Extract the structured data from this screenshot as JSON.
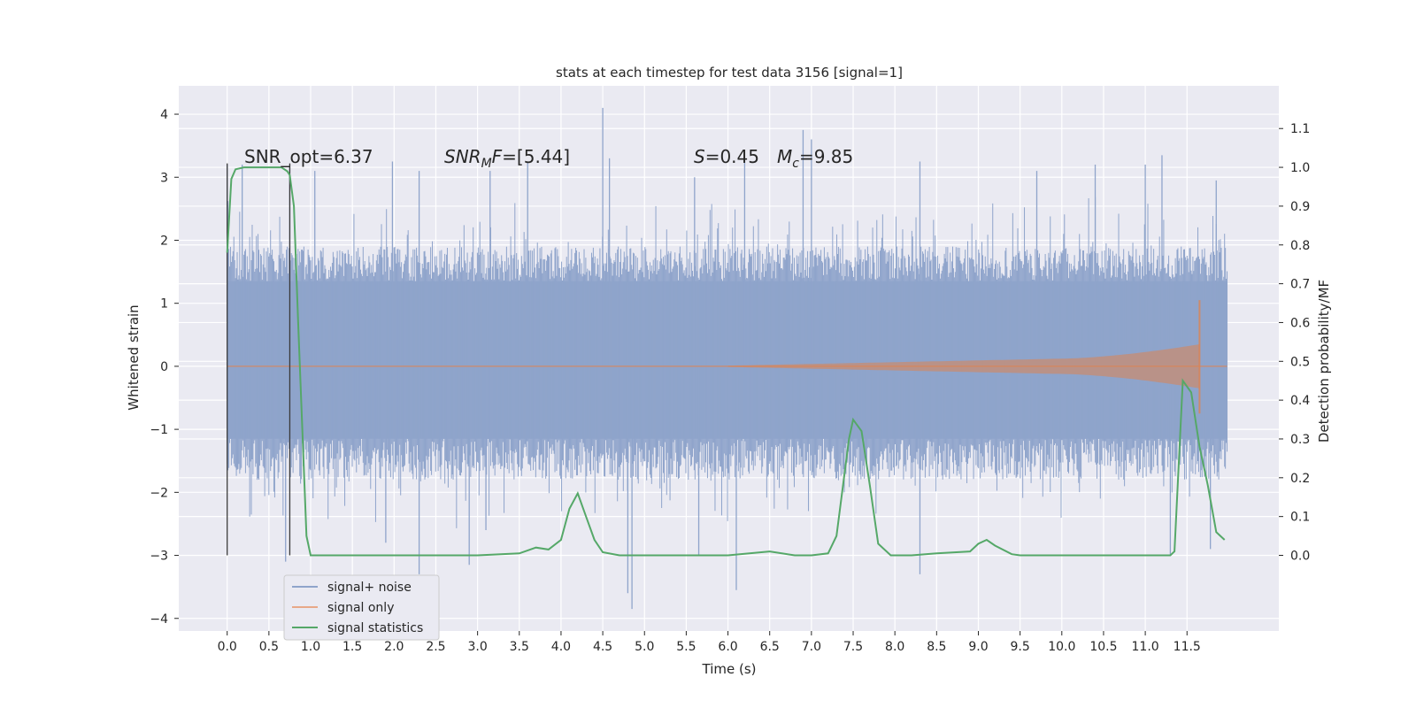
{
  "chart_data": {
    "type": "line",
    "title": "stats at each timestep for test data 3156 [signal=1]",
    "xlabel": "Time (s)",
    "ylabel": "Whitened strain",
    "ylabel_right": "Detection probability/MF",
    "xlim": [
      -0.58,
      12.6
    ],
    "ylim": [
      -4.2,
      4.45
    ],
    "ylim_right": [
      -0.195,
      1.21
    ],
    "x_ticks": [
      0.0,
      0.5,
      1.0,
      1.5,
      2.0,
      2.5,
      3.0,
      3.5,
      4.0,
      4.5,
      5.0,
      5.5,
      6.0,
      6.5,
      7.0,
      7.5,
      8.0,
      8.5,
      9.0,
      9.5,
      10.0,
      10.5,
      11.0,
      11.5
    ],
    "x_tick_labels": [
      "0.0",
      "0.5",
      "1.0",
      "1.5",
      "2.0",
      "2.5",
      "3.0",
      "3.5",
      "4.0",
      "4.5",
      "5.0",
      "5.5",
      "6.0",
      "6.5",
      "7.0",
      "7.5",
      "8.0",
      "8.5",
      "9.0",
      "9.5",
      "10.0",
      "10.5",
      "11.0",
      "11.5"
    ],
    "y_ticks": [
      -4,
      -3,
      -2,
      -1,
      0,
      1,
      2,
      3,
      4
    ],
    "y_tick_labels": [
      "−4",
      "−3",
      "−2",
      "−1",
      "0",
      "1",
      "2",
      "3",
      "4"
    ],
    "y_right_ticks": [
      0.0,
      0.1,
      0.2,
      0.3,
      0.4,
      0.5,
      0.6,
      0.7,
      0.8,
      0.9,
      1.0,
      1.1
    ],
    "y_right_tick_labels": [
      "0.0",
      "0.1",
      "0.2",
      "0.3",
      "0.4",
      "0.5",
      "0.6",
      "0.7",
      "0.8",
      "0.9",
      "1.0",
      "1.1"
    ],
    "grid": true,
    "legend_position": "bottom-left",
    "colors": {
      "background": "#eaeaf2",
      "grid": "#ffffff",
      "noise": "#8fa4cb",
      "signal": "#dd8452",
      "stats": "#55a868",
      "vline": "#3a3a3a"
    },
    "annotations": {
      "snr_opt": "SNR_opt=6.37",
      "snr_mf_sym": "SNR",
      "snr_mf_sub": "M",
      "snr_mf_rest": "F=[5.44]",
      "s_sym": "S",
      "s_val": "=0.45",
      "mc_sym": "M",
      "mc_sub": "c",
      "mc_val": "=9.85"
    },
    "vlines_x": [
      0.0,
      0.75
    ],
    "series": [
      {
        "name": "signal+ noise",
        "style": "noise",
        "t_end": 11.98,
        "band_inner": [
          -1.15,
          1.35
        ],
        "band_dense": [
          -1.8,
          1.9
        ],
        "range_envelope": [
          -3.6,
          4.1
        ],
        "spikes": [
          {
            "x": 0.0,
            "y": 3.2
          },
          {
            "x": 0.18,
            "y": 3.2
          },
          {
            "x": 0.75,
            "y": 3.2
          },
          {
            "x": 1.05,
            "y": 3.1
          },
          {
            "x": 1.98,
            "y": 3.25
          },
          {
            "x": 2.3,
            "y": 3.1
          },
          {
            "x": 3.15,
            "y": 3.1
          },
          {
            "x": 3.6,
            "y": 3.25
          },
          {
            "x": 4.5,
            "y": 4.1
          },
          {
            "x": 4.58,
            "y": 3.3
          },
          {
            "x": 5.6,
            "y": 3.0
          },
          {
            "x": 6.2,
            "y": 3.25
          },
          {
            "x": 6.9,
            "y": 3.75
          },
          {
            "x": 7.0,
            "y": 3.6
          },
          {
            "x": 8.3,
            "y": 3.25
          },
          {
            "x": 11.2,
            "y": 3.35
          },
          {
            "x": 11.85,
            "y": 2.95
          },
          {
            "x": 11.0,
            "y": 3.2
          },
          {
            "x": 10.4,
            "y": 3.2
          },
          {
            "x": 9.7,
            "y": 3.1
          },
          {
            "x": 2.3,
            "y": -3.3
          },
          {
            "x": 4.8,
            "y": -3.6
          },
          {
            "x": 4.85,
            "y": -3.85
          },
          {
            "x": 6.1,
            "y": -3.55
          },
          {
            "x": 8.3,
            "y": -3.3
          },
          {
            "x": 0.7,
            "y": -3.1
          },
          {
            "x": 2.9,
            "y": -3.15
          },
          {
            "x": 1.9,
            "y": -2.8
          },
          {
            "x": 5.65,
            "y": -3.0
          },
          {
            "x": 11.3,
            "y": -3.0
          },
          {
            "x": 11.78,
            "y": -2.9
          },
          {
            "x": 3.1,
            "y": -2.6
          }
        ]
      },
      {
        "name": "signal only",
        "style": "signal",
        "chirp_start": 6.0,
        "chirp_end": 11.65,
        "amp_start": 0.01,
        "amp_mid": 0.12,
        "amp_late": 0.35,
        "peak_top": 1.05,
        "peak_bottom": -0.75
      },
      {
        "name": "signal statistics",
        "style": "stats",
        "axis": "right",
        "x": [
          0.0,
          0.05,
          0.1,
          0.2,
          0.3,
          0.5,
          0.65,
          0.72,
          0.75,
          0.8,
          0.85,
          0.95,
          1.0,
          1.5,
          2.0,
          3.0,
          3.5,
          3.7,
          3.85,
          4.0,
          4.1,
          4.2,
          4.3,
          4.4,
          4.5,
          4.7,
          5.0,
          6.0,
          6.5,
          6.8,
          7.0,
          7.2,
          7.3,
          7.45,
          7.5,
          7.6,
          7.7,
          7.8,
          7.95,
          8.0,
          8.2,
          8.5,
          8.9,
          9.0,
          9.1,
          9.2,
          9.4,
          9.5,
          10.0,
          10.5,
          11.0,
          11.3,
          11.35,
          11.45,
          11.55,
          11.65,
          11.75,
          11.85,
          11.95
        ],
        "y": [
          0.78,
          0.97,
          0.995,
          1.0,
          1.0,
          1.0,
          1.0,
          0.99,
          0.98,
          0.9,
          0.6,
          0.05,
          0.0,
          0.0,
          0.0,
          0.0,
          0.005,
          0.02,
          0.015,
          0.04,
          0.12,
          0.16,
          0.1,
          0.04,
          0.008,
          0.0,
          0.0,
          0.0,
          0.01,
          0.0,
          0.0,
          0.005,
          0.05,
          0.3,
          0.35,
          0.32,
          0.18,
          0.03,
          0.0,
          0.0,
          0.0,
          0.005,
          0.01,
          0.03,
          0.04,
          0.025,
          0.003,
          0.0,
          0.0,
          0.0,
          0.0,
          0.0,
          0.01,
          0.45,
          0.42,
          0.28,
          0.18,
          0.06,
          0.04
        ]
      }
    ]
  }
}
